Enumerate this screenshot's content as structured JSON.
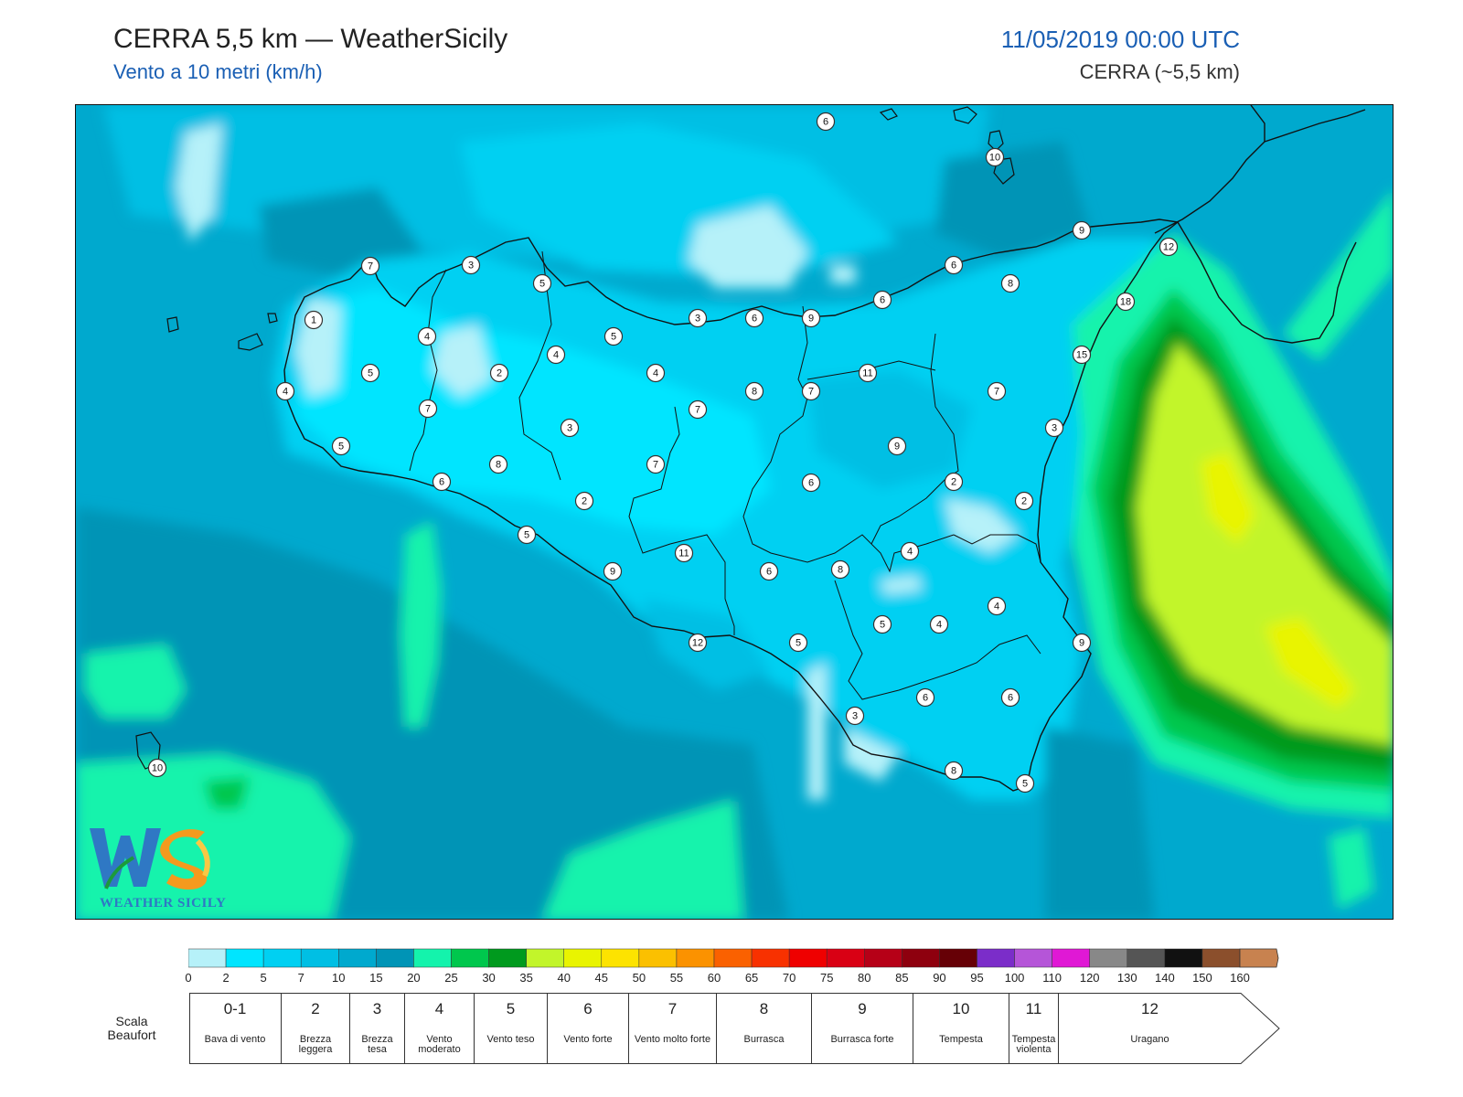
{
  "header": {
    "title": "CERRA 5,5 km — WeatherSicily",
    "subtitle": "Vento a 10 metri (km/h)",
    "datetime": "11/05/2019 00:00 UTC",
    "model": "CERRA (~5,5 km)"
  },
  "logo": {
    "text": "WEATHER SICILY",
    "mark": "WS"
  },
  "map": {
    "labels": [
      "6",
      "10",
      "9",
      "12",
      "7",
      "3",
      "5",
      "6",
      "8",
      "1",
      "4",
      "5",
      "2",
      "4",
      "5",
      "3",
      "6",
      "9",
      "6",
      "18",
      "15",
      "4",
      "7",
      "7",
      "3",
      "4",
      "8",
      "7",
      "11",
      "7",
      "3",
      "9",
      "6",
      "5",
      "2",
      "2",
      "8",
      "7",
      "6",
      "2",
      "5",
      "11",
      "6",
      "8",
      "4",
      "9",
      "4",
      "12",
      "5",
      "5",
      "4",
      "9",
      "10",
      "6",
      "3",
      "6",
      "8",
      "5"
    ]
  },
  "color_scale": {
    "ticks": [
      "0",
      "2",
      "5",
      "7",
      "10",
      "15",
      "20",
      "25",
      "30",
      "35",
      "40",
      "45",
      "50",
      "55",
      "60",
      "65",
      "70",
      "75",
      "80",
      "85",
      "90",
      "95",
      "100",
      "110",
      "120",
      "130",
      "140",
      "150",
      "160"
    ],
    "colors": [
      "#b6f1f9",
      "#00e5ff",
      "#00d0f2",
      "#00bfe4",
      "#00a9ce",
      "#0094b6",
      "#14f3ac",
      "#00c74d",
      "#009a1e",
      "#c2f52a",
      "#e9f400",
      "#fde300",
      "#fbc000",
      "#fb9200",
      "#fa6100",
      "#f83100",
      "#ef0000",
      "#d90014",
      "#b60017",
      "#8e000e",
      "#660006",
      "#7b2dc9",
      "#b555d8",
      "#e018d5",
      "#888888",
      "#555555",
      "#111111",
      "#8b4f2c",
      "#c8824f"
    ]
  },
  "beaufort": {
    "caption": "Scala Beaufort",
    "levels": [
      {
        "num": "0-1",
        "name": "Bava di vento"
      },
      {
        "num": "2",
        "name": "Brezza leggera"
      },
      {
        "num": "3",
        "name": "Brezza tesa"
      },
      {
        "num": "4",
        "name": "Vento moderato"
      },
      {
        "num": "5",
        "name": "Vento teso"
      },
      {
        "num": "6",
        "name": "Vento forte"
      },
      {
        "num": "7",
        "name": "Vento molto forte"
      },
      {
        "num": "8",
        "name": "Burrasca"
      },
      {
        "num": "9",
        "name": "Burrasca forte"
      },
      {
        "num": "10",
        "name": "Tempesta"
      },
      {
        "num": "11",
        "name": "Tempesta violenta"
      },
      {
        "num": "12",
        "name": "Uragano"
      }
    ]
  }
}
